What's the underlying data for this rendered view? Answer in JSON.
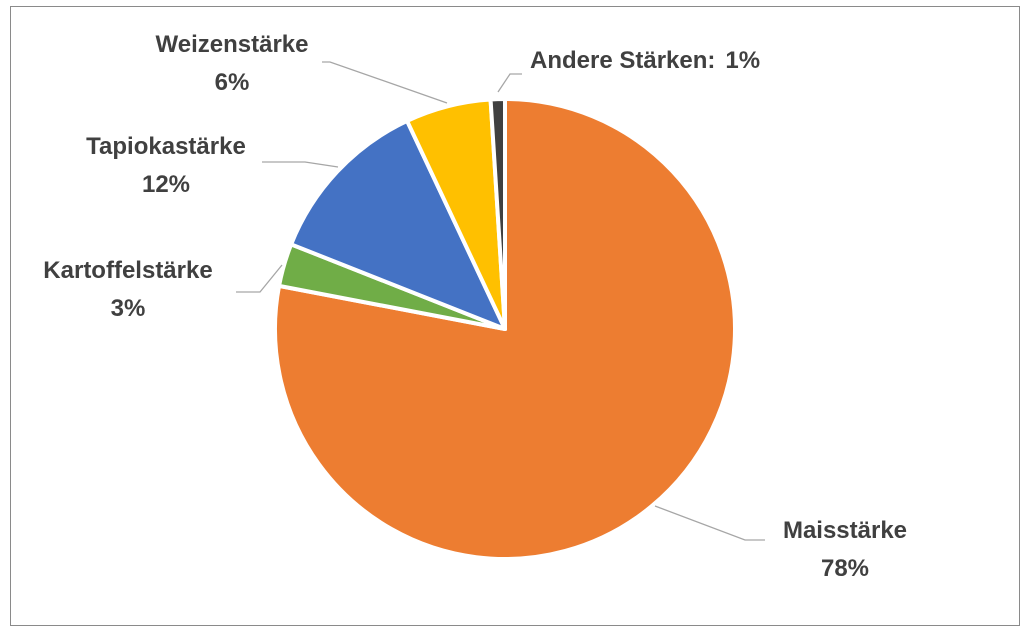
{
  "chart_data": {
    "type": "pie",
    "title": "",
    "slices": [
      {
        "name": "Maisstärke",
        "value": 78,
        "label_name": "Maisstärke",
        "label_value": "78%",
        "color": "#ED7D31"
      },
      {
        "name": "Kartoffelstärke",
        "value": 3,
        "label_name": "Kartoffelstärke",
        "label_value": "3%",
        "color": "#70AD47"
      },
      {
        "name": "Tapiokastärke",
        "value": 12,
        "label_name": "Tapiokastärke",
        "label_value": "12%",
        "color": "#4472C4"
      },
      {
        "name": "Weizenstärke",
        "value": 6,
        "label_name": "Weizenstärke",
        "label_value": "6%",
        "color": "#FFC000"
      },
      {
        "name": "Andere Stärken",
        "value": 1,
        "label_name": "Andere Stärken:",
        "label_value": "1%",
        "color": "#404040"
      }
    ],
    "legend": "none",
    "data_labels": "outside with leader lines"
  }
}
